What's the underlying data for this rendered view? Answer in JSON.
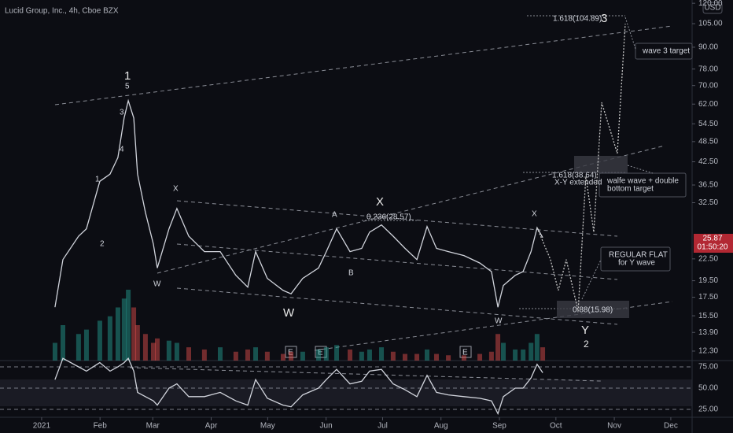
{
  "chart_data": [
    {
      "type": "line",
      "title": "Lucid Group, Inc., 4h, Cboe BZX",
      "currency": "USD",
      "last_price_label": "25.87",
      "countdown": "01:50:20",
      "log_scale": true,
      "xlim": [
        -22.1,
        345.3
      ],
      "xticks": [
        {
          "value": 0,
          "label": "2021"
        },
        {
          "value": 31,
          "label": "Feb"
        },
        {
          "value": 59,
          "label": "Mar"
        },
        {
          "value": 90,
          "label": "Apr"
        },
        {
          "value": 120,
          "label": "May"
        },
        {
          "value": 151,
          "label": "Jun"
        },
        {
          "value": 181,
          "label": "Jul"
        },
        {
          "value": 212,
          "label": "Aug"
        },
        {
          "value": 243,
          "label": "Sep"
        },
        {
          "value": 273,
          "label": "Oct"
        },
        {
          "value": 304,
          "label": "Nov"
        },
        {
          "value": 334,
          "label": "Dec"
        }
      ],
      "ylim": [
        11.56,
        122.6
      ],
      "yticks": [
        {
          "value": 120,
          "label": "120.00"
        },
        {
          "value": 105,
          "label": "105.00"
        },
        {
          "value": 90,
          "label": "90.00"
        },
        {
          "value": 78,
          "label": "78.00"
        },
        {
          "value": 70,
          "label": "70.00"
        },
        {
          "value": 62,
          "label": "62.00"
        },
        {
          "value": 54.5,
          "label": "54.50"
        },
        {
          "value": 48.5,
          "label": "48.50"
        },
        {
          "value": 42.5,
          "label": "42.50"
        },
        {
          "value": 36.5,
          "label": "36.50"
        },
        {
          "value": 32.5,
          "label": "32.50"
        },
        {
          "value": 22.5,
          "label": "22.50"
        },
        {
          "value": 19.5,
          "label": "19.50"
        },
        {
          "value": 17.5,
          "label": "17.50"
        },
        {
          "value": 15.5,
          "label": "15.50"
        },
        {
          "value": 13.9,
          "label": "13.90"
        },
        {
          "value": 12.3,
          "label": "12.30"
        }
      ],
      "x": [
        7.1,
        11.3,
        19.6,
        23.8,
        30.9,
        36.3,
        40.5,
        43.8,
        46.0,
        48.9,
        50.9,
        55.1,
        59.3,
        61.4,
        67.6,
        71.8,
        78.1,
        86.4,
        94.8,
        103.1,
        109.4,
        113.6,
        119.8,
        128.2,
        132.4,
        138.6,
        147.0,
        151.1,
        156.6,
        163.7,
        169.9,
        174.1,
        180.4,
        186.6,
        192.9,
        199.2,
        204.6,
        209.6,
        215.9,
        224.2,
        232.6,
        238.8,
        242.2,
        245.1,
        251.4,
        255.6,
        259.8,
        263.0,
        266.0
      ],
      "series": [
        {
          "color": "#d1d4dc",
          "values": [
            16.4,
            22.4,
            26.1,
            27.4,
            37.4,
            39.2,
            43.7,
            56.6,
            63.4,
            56.6,
            39.2,
            30.5,
            24.8,
            21.2,
            27.4,
            31.3,
            26.1,
            23.6,
            23.6,
            20.2,
            18.7,
            23.6,
            19.8,
            18.3,
            17.9,
            19.8,
            21.2,
            23.6,
            27.4,
            23.6,
            24.1,
            26.8,
            28.1,
            26.1,
            24.1,
            22.4,
            27.8,
            24.1,
            23.6,
            23.0,
            21.9,
            20.7,
            16.4,
            18.9,
            20.2,
            20.7,
            23.6,
            27.6,
            25.87
          ]
        },
        {
          "color": "#c8c8c8",
          "x": [
            263.0,
            270.1,
            274.3,
            278.5,
            284.8,
            288.9,
            293.1,
            297.3,
            305.6,
            309.8
          ],
          "values": [
            27.6,
            22.4,
            18.3,
            22.4,
            15.98,
            38.64,
            26.8,
            62.7,
            44.9,
            104.89
          ]
        }
      ],
      "volume": [
        40,
        80,
        60,
        70,
        90,
        100,
        120,
        140,
        160,
        120,
        80,
        60,
        40,
        50,
        45,
        40,
        30,
        25,
        30,
        20,
        25,
        30,
        20,
        15,
        20,
        20,
        25,
        30,
        35,
        25,
        20,
        25,
        30,
        20,
        15,
        15,
        25,
        15,
        12,
        12,
        15,
        20,
        60,
        40,
        25,
        25,
        40,
        60,
        30
      ],
      "annotations": [
        "1.618(104.89)",
        "3",
        "wave 3 target",
        "1",
        "5",
        "3",
        "4",
        "1",
        "2",
        "X",
        "W",
        "A",
        "B",
        "X",
        "0.236(28.57)",
        "W",
        "X",
        "W",
        "1.618(38.64)",
        "X-Y extended",
        "walfe wave + double",
        "bottom target",
        "REGULAR FLAT",
        "for Y wave",
        "0.88(15.98)",
        "Y",
        "2",
        "E",
        "E",
        "E"
      ]
    },
    {
      "type": "line",
      "ylim": [
        15.7,
        82.4
      ],
      "yticks": [
        {
          "value": 75,
          "label": "75.00"
        },
        {
          "value": 50,
          "label": "50.00"
        },
        {
          "value": 25,
          "label": "25.00"
        }
      ],
      "series": [
        {
          "color": "#d1d4dc",
          "values": [
            60,
            85,
            75,
            70,
            80,
            70,
            75,
            80,
            85,
            70,
            45,
            40,
            35,
            30,
            50,
            55,
            40,
            40,
            45,
            35,
            30,
            60,
            38,
            30,
            28,
            42,
            50,
            60,
            72,
            55,
            58,
            70,
            72,
            55,
            48,
            40,
            65,
            45,
            42,
            40,
            38,
            35,
            20,
            40,
            50,
            50,
            62,
            78,
            68
          ]
        }
      ]
    }
  ]
}
